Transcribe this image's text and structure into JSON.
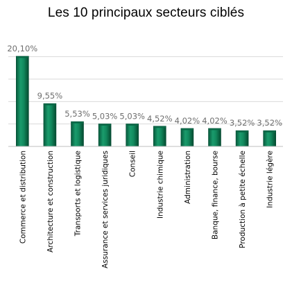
{
  "chart_data": {
    "type": "bar",
    "title": "Les 10 principaux secteurs ciblés",
    "categories": [
      "Commerce et distribution",
      "Architecture et construction",
      "Transports et logistique",
      "Assurance et services juridiques",
      "Conseil",
      "Industrie chimique",
      "Administration",
      "Banque, finance, bourse",
      "Production à petite échelle",
      "Industrie légère"
    ],
    "values": [
      20.1,
      9.55,
      5.53,
      5.03,
      5.03,
      4.52,
      4.02,
      4.02,
      3.52,
      3.52
    ],
    "value_labels": [
      "20,10%",
      "9,55%",
      "5,53%",
      "5,03%",
      "5,03%",
      "4,52%",
      "4,02%",
      "4,02%",
      "3,52%",
      "3,52%"
    ],
    "ylim": [
      0,
      20
    ],
    "grid": true,
    "bar_color": "#0e7a55"
  }
}
